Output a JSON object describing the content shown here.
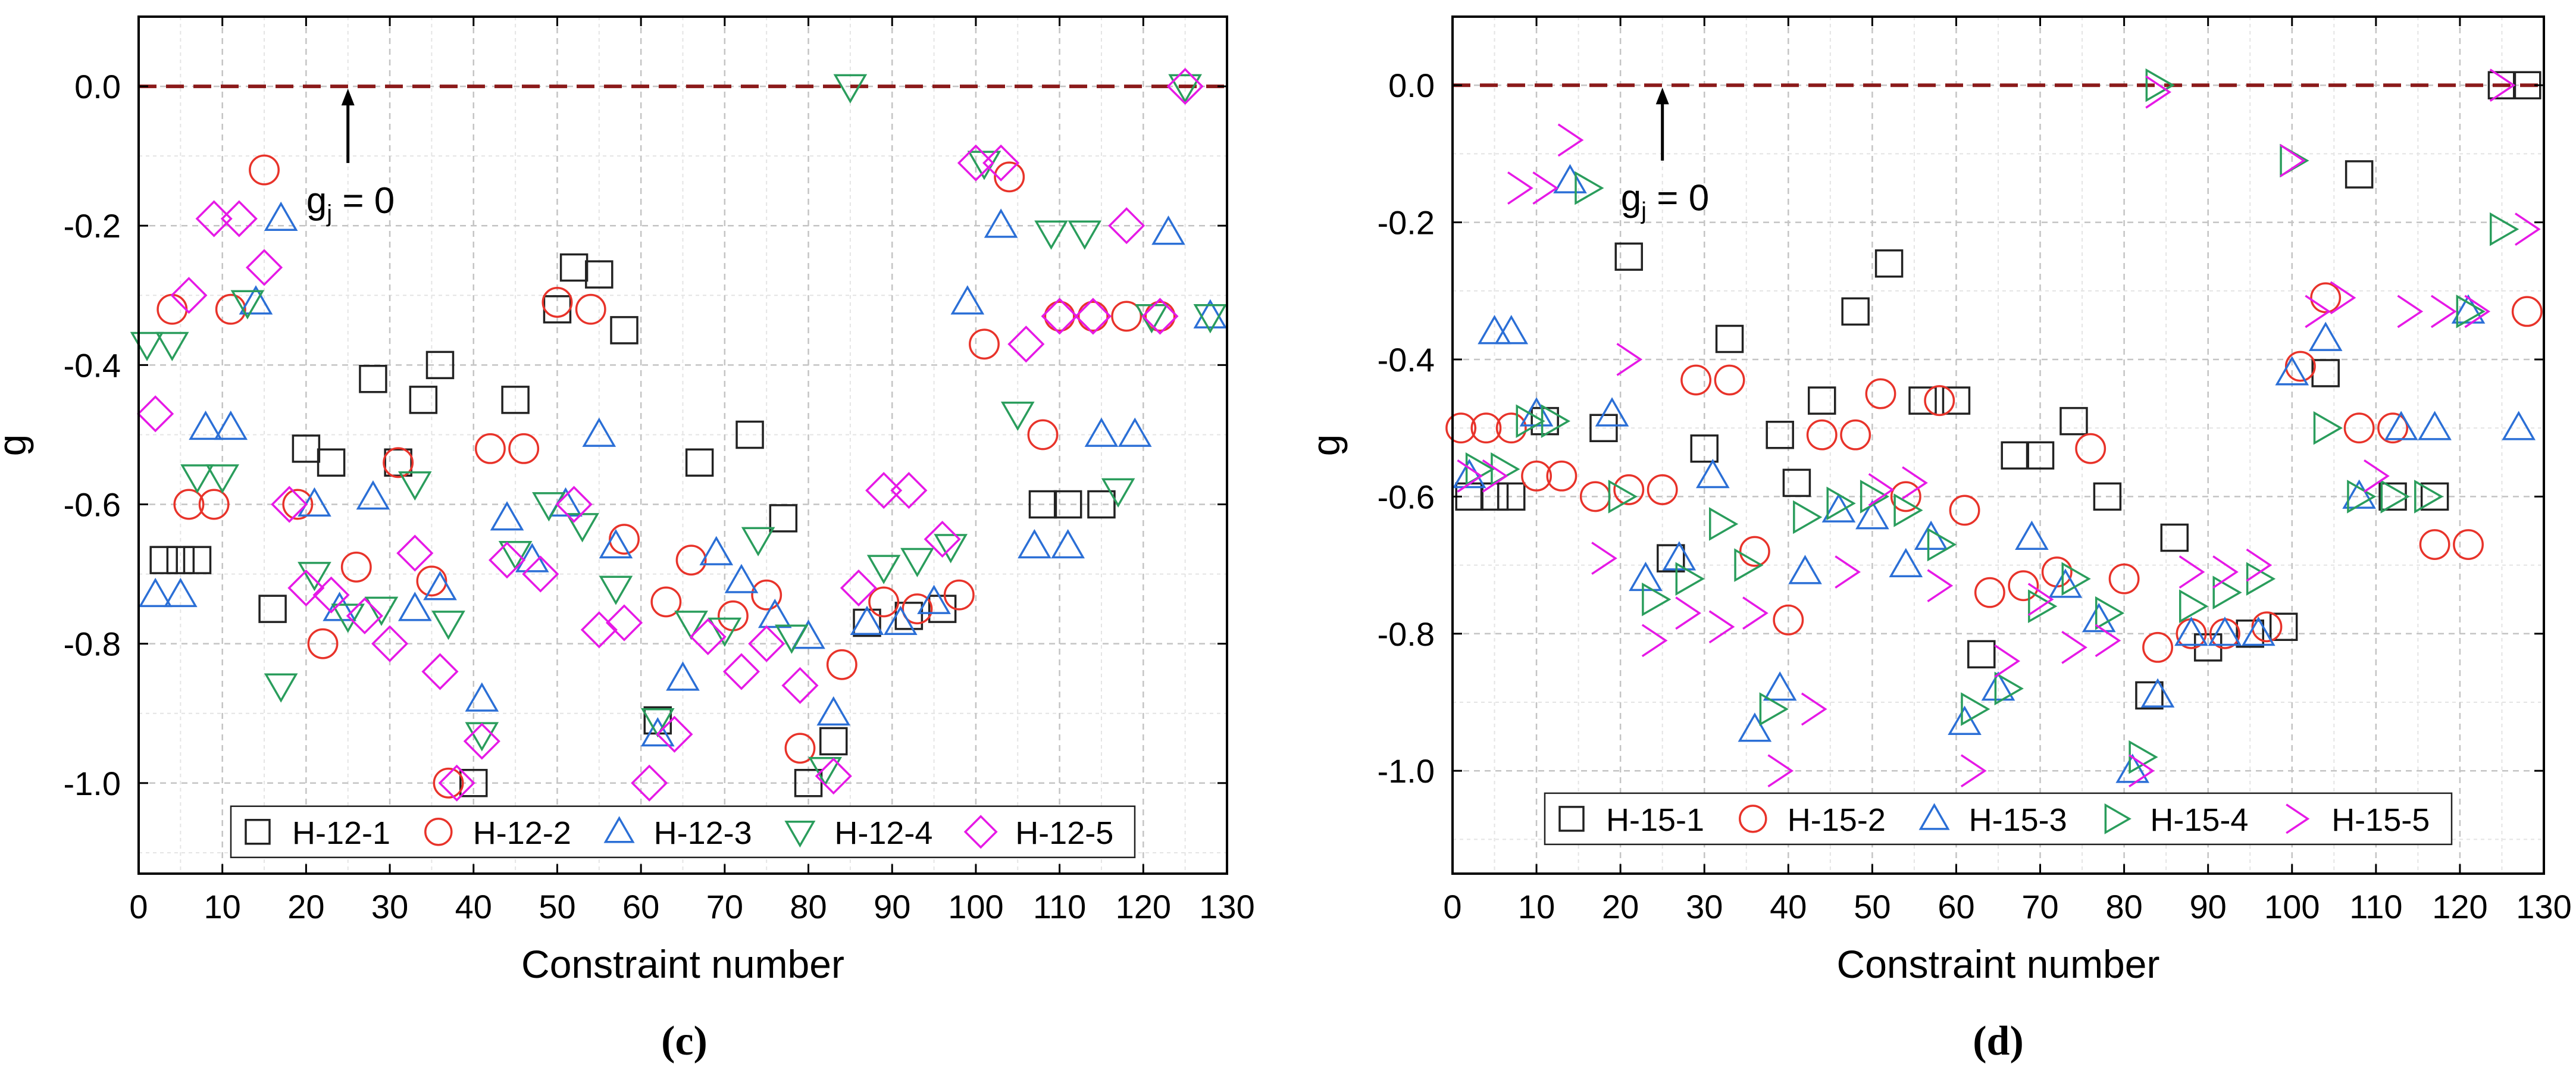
{
  "chart_data": [
    {
      "type": "scatter",
      "panel_label": "(c)",
      "xlabel": "Constraint number",
      "ylabel": "g",
      "xlim": [
        0,
        130
      ],
      "ylim": [
        -1.13,
        0.1
      ],
      "xticks": [
        0,
        10,
        20,
        30,
        40,
        50,
        60,
        70,
        80,
        90,
        100,
        110,
        120,
        130
      ],
      "yticks": [
        -1.0,
        -0.8,
        -0.6,
        -0.4,
        -0.2,
        0.0
      ],
      "ytick_labels": [
        "-1.0",
        "-0.8",
        "-0.6",
        "-0.4",
        "-0.2",
        "0.0"
      ],
      "reference_line": {
        "y": 0,
        "style": "dashed",
        "color": "#8b1a1a"
      },
      "annotation": {
        "text": "g",
        "subscript": "j",
        "suffix": " = 0",
        "x": 25,
        "y": -0.165,
        "arrow_from_y": -0.11,
        "arrow_to_y": 0.0
      },
      "legend": {
        "placement": "bottom",
        "entries": [
          "H-12-1",
          "H-12-2",
          "H-12-3",
          "H-12-4",
          "H-12-5"
        ],
        "markers": [
          "square",
          "circle",
          "triangle-up",
          "triangle-down",
          "diamond"
        ],
        "colors": [
          "#222222",
          "#e8332a",
          "#2b6fd6",
          "#2a9d5c",
          "#e619e6"
        ]
      },
      "series": [
        {
          "name": "H-12-1",
          "marker": "square",
          "color": "#222222",
          "x": [
            3,
            5,
            7,
            16,
            20,
            23,
            28,
            31,
            34,
            36,
            40,
            45,
            50,
            52,
            55,
            58,
            62,
            67,
            73,
            77,
            80,
            83,
            87,
            92,
            96,
            108,
            111,
            115
          ],
          "y": [
            -0.68,
            -0.68,
            -0.68,
            -0.75,
            -0.52,
            -0.54,
            -0.42,
            -0.54,
            -0.45,
            -0.4,
            -1.0,
            -0.45,
            -0.32,
            -0.26,
            -0.27,
            -0.35,
            -0.91,
            -0.54,
            -0.5,
            -0.62,
            -1.0,
            -0.94,
            -0.77,
            -0.76,
            -0.75,
            -0.6,
            -0.6,
            -0.6
          ]
        },
        {
          "name": "H-12-2",
          "marker": "circle",
          "color": "#e8332a",
          "x": [
            4,
            6,
            9,
            11,
            15,
            19,
            22,
            26,
            31,
            35,
            37,
            42,
            46,
            50,
            54,
            58,
            63,
            66,
            71,
            75,
            79,
            84,
            89,
            93,
            98,
            101,
            104,
            108,
            110,
            114,
            118,
            122
          ],
          "y": [
            -0.32,
            -0.6,
            -0.6,
            -0.32,
            -0.12,
            -0.6,
            -0.8,
            -0.69,
            -0.54,
            -0.71,
            -1.0,
            -0.52,
            -0.52,
            -0.31,
            -0.32,
            -0.65,
            -0.74,
            -0.68,
            -0.76,
            -0.73,
            -0.95,
            -0.83,
            -0.74,
            -0.75,
            -0.73,
            -0.37,
            -0.13,
            -0.5,
            -0.33,
            -0.33,
            -0.33,
            -0.33
          ]
        },
        {
          "name": "H-12-3",
          "marker": "triangle-up",
          "color": "#2b6fd6",
          "x": [
            2,
            5,
            8,
            11,
            14,
            17,
            21,
            24,
            28,
            33,
            36,
            41,
            44,
            47,
            51,
            55,
            57,
            62,
            65,
            69,
            72,
            76,
            80,
            83,
            87,
            91,
            95,
            99,
            103,
            107,
            111,
            115,
            119,
            123,
            128
          ],
          "y": [
            -0.73,
            -0.73,
            -0.49,
            -0.49,
            -0.31,
            -0.19,
            -0.6,
            -0.75,
            -0.59,
            -0.75,
            -0.72,
            -0.88,
            -0.62,
            -0.68,
            -0.6,
            -0.5,
            -0.66,
            -0.93,
            -0.85,
            -0.67,
            -0.71,
            -0.76,
            -0.79,
            -0.9,
            -0.77,
            -0.77,
            -0.74,
            -0.31,
            -0.2,
            -0.66,
            -0.66,
            -0.5,
            -0.5,
            -0.21,
            -0.33
          ]
        },
        {
          "name": "H-12-4",
          "marker": "triangle-down",
          "color": "#2a9d5c",
          "x": [
            1,
            4,
            7,
            10,
            13,
            17,
            21,
            25,
            29,
            33,
            37,
            41,
            45,
            49,
            53,
            57,
            62,
            66,
            70,
            74,
            78,
            82,
            85,
            89,
            93,
            97,
            101,
            105,
            109,
            113,
            117,
            121,
            125,
            128
          ],
          "y": [
            -0.37,
            -0.37,
            -0.56,
            -0.56,
            -0.31,
            -0.86,
            -0.7,
            -0.76,
            -0.75,
            -0.57,
            -0.77,
            -0.93,
            -0.67,
            -0.6,
            -0.63,
            -0.72,
            -0.91,
            -0.77,
            -0.78,
            -0.65,
            -0.79,
            -0.98,
            0.0,
            -0.69,
            -0.68,
            -0.66,
            -0.11,
            -0.47,
            -0.21,
            -0.21,
            -0.58,
            -0.33,
            0.0,
            -0.33
          ]
        },
        {
          "name": "H-12-5",
          "marker": "diamond",
          "color": "#e619e6",
          "x": [
            2,
            6,
            9,
            12,
            15,
            18,
            20,
            23,
            27,
            30,
            33,
            36,
            38,
            41,
            44,
            48,
            52,
            55,
            58,
            61,
            64,
            68,
            72,
            75,
            79,
            83,
            86,
            89,
            92,
            96,
            100,
            103,
            106,
            110,
            114,
            118,
            122,
            125
          ],
          "y": [
            -0.47,
            -0.3,
            -0.19,
            -0.19,
            -0.26,
            -0.6,
            -0.72,
            -0.73,
            -0.76,
            -0.8,
            -0.67,
            -0.84,
            -1.0,
            -0.94,
            -0.68,
            -0.7,
            -0.6,
            -0.78,
            -0.77,
            -1.0,
            -0.93,
            -0.79,
            -0.84,
            -0.8,
            -0.86,
            -0.99,
            -0.72,
            -0.58,
            -0.58,
            -0.65,
            -0.11,
            -0.11,
            -0.37,
            -0.33,
            -0.33,
            -0.2,
            -0.33,
            0.0
          ]
        }
      ]
    },
    {
      "type": "scatter",
      "panel_label": "(d)",
      "xlabel": "Constraint number",
      "ylabel": "g",
      "xlim": [
        0,
        130
      ],
      "ylim": [
        -1.15,
        0.1
      ],
      "xticks": [
        0,
        10,
        20,
        30,
        40,
        50,
        60,
        70,
        80,
        90,
        100,
        110,
        120,
        130
      ],
      "yticks": [
        -1.0,
        -0.8,
        -0.6,
        -0.4,
        -0.2,
        0.0
      ],
      "ytick_labels": [
        "-1.0",
        "-0.8",
        "-0.6",
        "-0.4",
        "-0.2",
        "0.0"
      ],
      "reference_line": {
        "y": 0,
        "style": "dashed",
        "color": "#8b1a1a"
      },
      "annotation": {
        "text": "g",
        "subscript": "j",
        "suffix": " = 0",
        "x": 25,
        "y": -0.165,
        "arrow_from_y": -0.11,
        "arrow_to_y": 0.0
      },
      "legend": {
        "placement": "bottom",
        "entries": [
          "H-15-1",
          "H-15-2",
          "H-15-3",
          "H-15-4",
          "H-15-5"
        ],
        "markers": [
          "square",
          "circle",
          "triangle-up",
          "triangle-right",
          "chevron-right"
        ],
        "colors": [
          "#222222",
          "#e8332a",
          "#2b6fd6",
          "#2a9d5c",
          "#e619e6"
        ]
      },
      "series": [
        {
          "name": "H-15-1",
          "marker": "square",
          "color": "#222222",
          "x": [
            2,
            5,
            7,
            11,
            18,
            21,
            26,
            30,
            33,
            39,
            41,
            44,
            48,
            52,
            56,
            60,
            63,
            67,
            70,
            74,
            78,
            83,
            86,
            90,
            95,
            99,
            104,
            108,
            112,
            117,
            125,
            128
          ],
          "y": [
            -0.6,
            -0.6,
            -0.6,
            -0.49,
            -0.5,
            -0.25,
            -0.69,
            -0.53,
            -0.37,
            -0.51,
            -0.58,
            -0.46,
            -0.33,
            -0.26,
            -0.46,
            -0.46,
            -0.83,
            -0.54,
            -0.54,
            -0.49,
            -0.6,
            -0.89,
            -0.66,
            -0.82,
            -0.8,
            -0.79,
            -0.42,
            -0.13,
            -0.6,
            -0.6,
            0.0,
            0.0
          ]
        },
        {
          "name": "H-15-2",
          "marker": "circle",
          "color": "#e8332a",
          "x": [
            1,
            4,
            7,
            10,
            13,
            17,
            21,
            25,
            29,
            33,
            36,
            40,
            44,
            48,
            51,
            54,
            58,
            61,
            64,
            68,
            72,
            76,
            80,
            84,
            88,
            92,
            97,
            101,
            104,
            108,
            112,
            117,
            121,
            128
          ],
          "y": [
            -0.5,
            -0.5,
            -0.5,
            -0.57,
            -0.57,
            -0.6,
            -0.59,
            -0.59,
            -0.43,
            -0.43,
            -0.68,
            -0.78,
            -0.51,
            -0.51,
            -0.45,
            -0.6,
            -0.46,
            -0.62,
            -0.74,
            -0.73,
            -0.71,
            -0.53,
            -0.72,
            -0.82,
            -0.8,
            -0.8,
            -0.79,
            -0.41,
            -0.31,
            -0.5,
            -0.5,
            -0.67,
            -0.67,
            -0.33
          ]
        },
        {
          "name": "H-15-3",
          "marker": "triangle-up",
          "color": "#2b6fd6",
          "x": [
            2,
            5,
            7,
            10,
            14,
            19,
            23,
            27,
            31,
            36,
            39,
            42,
            46,
            50,
            54,
            57,
            61,
            65,
            69,
            73,
            77,
            81,
            84,
            88,
            92,
            96,
            100,
            104,
            108,
            113,
            117,
            121,
            127
          ],
          "y": [
            -0.57,
            -0.36,
            -0.36,
            -0.48,
            -0.14,
            -0.48,
            -0.72,
            -0.69,
            -0.57,
            -0.94,
            -0.88,
            -0.71,
            -0.62,
            -0.63,
            -0.7,
            -0.66,
            -0.93,
            -0.88,
            -0.66,
            -0.73,
            -0.78,
            -1.0,
            -0.89,
            -0.8,
            -0.8,
            -0.8,
            -0.42,
            -0.37,
            -0.6,
            -0.5,
            -0.5,
            -0.33,
            -0.5
          ]
        },
        {
          "name": "H-15-4",
          "marker": "triangle-right",
          "color": "#2a9d5c",
          "x": [
            3,
            6,
            9,
            12,
            16,
            20,
            24,
            28,
            32,
            35,
            38,
            42,
            46,
            50,
            54,
            58,
            62,
            66,
            70,
            74,
            78,
            82,
            84,
            88,
            92,
            96,
            100,
            104,
            108,
            112,
            116,
            121,
            125
          ],
          "y": [
            -0.56,
            -0.56,
            -0.49,
            -0.49,
            -0.15,
            -0.6,
            -0.75,
            -0.72,
            -0.64,
            -0.7,
            -0.91,
            -0.63,
            -0.61,
            -0.6,
            -0.62,
            -0.67,
            -0.91,
            -0.88,
            -0.76,
            -0.72,
            -0.77,
            -0.98,
            0.0,
            -0.76,
            -0.74,
            -0.72,
            -0.11,
            -0.5,
            -0.6,
            -0.6,
            -0.6,
            -0.33,
            -0.21
          ]
        },
        {
          "name": "H-15-5",
          "marker": "chevron-right",
          "color": "#e619e6",
          "x": [
            2,
            5,
            8,
            11,
            14,
            18,
            21,
            24,
            28,
            32,
            36,
            39,
            43,
            47,
            51,
            55,
            58,
            62,
            66,
            70,
            74,
            78,
            82,
            84,
            88,
            92,
            96,
            100,
            103,
            106,
            110,
            114,
            118,
            122,
            125,
            128
          ],
          "y": [
            -0.57,
            -0.57,
            -0.15,
            -0.15,
            -0.08,
            -0.69,
            -0.4,
            -0.81,
            -0.77,
            -0.79,
            -0.77,
            -1.0,
            -0.91,
            -0.71,
            -0.59,
            -0.58,
            -0.73,
            -1.0,
            -0.84,
            -0.75,
            -0.82,
            -0.81,
            -1.0,
            -0.01,
            -0.71,
            -0.71,
            -0.7,
            -0.11,
            -0.33,
            -0.31,
            -0.57,
            -0.33,
            -0.33,
            -0.33,
            0.0,
            -0.21
          ]
        }
      ]
    }
  ]
}
